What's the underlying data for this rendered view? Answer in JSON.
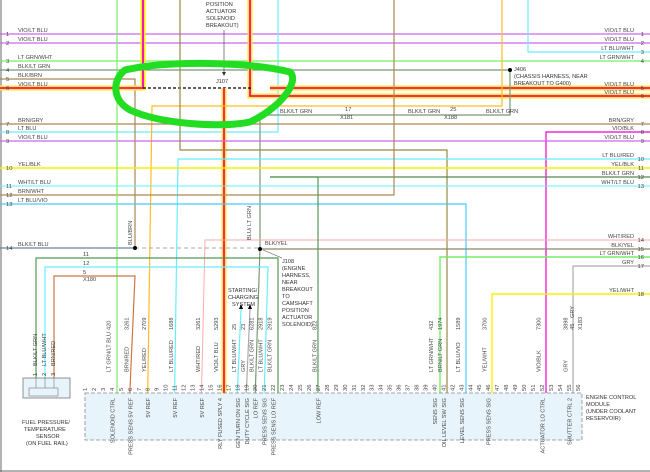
{
  "colors": {
    "violet": "#cc66ee",
    "yellow": "#ffee00",
    "magenta": "#ee00cc",
    "lt_green": "#77ee66",
    "blk_lt_grn": "#779977",
    "cyan": "#66eeff",
    "brown": "#aa8855",
    "orange": "#ffbb22",
    "highlight": "#22dd22",
    "module_fill": "#e8f4fc"
  },
  "top_note": [
    "POSITION",
    "ACTUATOR",
    "SOLENOID",
    "BREAKOUT)"
  ],
  "left_wires": [
    {
      "num": "1",
      "label": "VIO/LT BLU"
    },
    {
      "num": "2",
      "label": "VIO/LT BLU"
    },
    {
      "num": "3",
      "label": "LT GRN/WHT"
    },
    {
      "num": "4",
      "label": "BLK/LT GRN"
    },
    {
      "num": "5",
      "label": "BLK/BRN"
    },
    {
      "num": "6",
      "label": "VIO/LT BLU"
    },
    {
      "num": "7",
      "label": "BRN/GRY"
    },
    {
      "num": "8",
      "label": "LT BLU"
    },
    {
      "num": "9",
      "label": "VIO/LT BLU"
    },
    {
      "num": "10",
      "label": "YEL/BLK"
    },
    {
      "num": "11",
      "label": "WHT/LT BLU"
    },
    {
      "num": "12",
      "label": "BRN/WHT"
    },
    {
      "num": "13",
      "label": "LT BLU/VIO"
    },
    {
      "num": "14",
      "label": "BLK/LT BLU"
    }
  ],
  "right_wires": [
    {
      "num": "1",
      "label": "VIO/LT BLU"
    },
    {
      "num": "2",
      "label": "VIO/LT BLU"
    },
    {
      "num": "3",
      "label": "LT BLU/WHT"
    },
    {
      "num": "4",
      "label": "LT GRN/WHT"
    },
    {
      "num": "5",
      "label": "VIO/LT BLU"
    },
    {
      "num": "6",
      "label": "VIO/LT BLU"
    },
    {
      "num": "7",
      "label": "BRN/GRY"
    },
    {
      "num": "8",
      "label": "VIO/BLK"
    },
    {
      "num": "9",
      "label": "VIO/LT BLU"
    },
    {
      "num": "10",
      "label": "LT BLU/RED"
    },
    {
      "num": "11",
      "label": "YEL/BLK"
    },
    {
      "num": "12",
      "label": "BLK/LT GRN"
    },
    {
      "num": "13",
      "label": "WHT/LT BLU"
    },
    {
      "num": "14",
      "label": "WHT/RED"
    },
    {
      "num": "15",
      "label": "BLK/YEL"
    },
    {
      "num": "16",
      "label": "LT GRN/WHT"
    },
    {
      "num": "17",
      "label": "GRY"
    },
    {
      "num": "18",
      "label": "YEL/WHT"
    }
  ],
  "splices": {
    "j107": "J107",
    "j406": {
      "name": "J406",
      "desc": [
        "(CHASSIS HARNESS, NEAR",
        "BREAKOUT TO G400)"
      ]
    },
    "j108": {
      "name": "J108",
      "desc": [
        "(ENGINE",
        "HARNESS,",
        "NEAR",
        "BREAKOUT",
        "TO",
        "CAMSHAFT",
        "POSITION",
        "ACTUATOR",
        "SOLENOID)"
      ]
    }
  },
  "mid_labels": {
    "blk_lt_grn": "BLK/LT GRN",
    "blk_yel": "BLK/YEL",
    "blu_brn": "BLU/BRN",
    "blu_lt_grn": "BLU/ LT GRN",
    "x181_pin": "17",
    "x181": "X181",
    "x188_pin": "25",
    "x188": "X188",
    "x180": "X180",
    "x180_pins": [
      "11",
      "12",
      "5"
    ],
    "x183_pin": "45",
    "x183_wire": "GRY",
    "x183": "X183"
  },
  "starting_system": [
    "STARTING/",
    "CHARGING",
    "SYSTEM"
  ],
  "sensor": {
    "name": [
      "FUEL PRESSURE/",
      "TEMPERATURE",
      "SENSOR",
      "(ON FUEL RAIL)"
    ],
    "pins": [
      {
        "num": "1",
        "wire": "BLK/LT GRN"
      },
      {
        "num": "2",
        "wire": "LT BLU/WHT"
      },
      {
        "num": "3",
        "wire": "BRN/RED"
      }
    ]
  },
  "ecm": {
    "name": [
      "ENGINE CONTROL",
      "MODULE",
      "(UNDER COOLANT",
      "RESERVOIR)"
    ],
    "pin_numbers": [
      "1",
      "2",
      "3",
      "4",
      "5",
      "6",
      "7",
      "8",
      "9",
      "10",
      "11",
      "12",
      "13",
      "14",
      "15",
      "16",
      "17",
      "18",
      "19",
      "20",
      "21",
      "22",
      "23",
      "24",
      "25",
      "26",
      "27",
      "28",
      "29",
      "30",
      "31",
      "32",
      "33",
      "34",
      "35",
      "36",
      "37",
      "38",
      "39",
      "40",
      "41",
      "42",
      "43",
      "44",
      "45",
      "46",
      "47",
      "48",
      "49",
      "50",
      "51",
      "52",
      "53",
      "54",
      "55",
      "56"
    ],
    "pins": [
      {
        "pin": 4,
        "wire": "LT GRN/LT BLU",
        "circuit": "420",
        "func": "SOLENOID CTRL"
      },
      {
        "pin": 6,
        "wire": "BRN/RED",
        "circuit": "3261",
        "func": "PRESS SENS 5V REF"
      },
      {
        "pin": 8,
        "wire": "YEL/RED",
        "circuit": "2709",
        "func": "5V REF"
      },
      {
        "pin": 11,
        "wire": "LT BLU/RED",
        "circuit": "1688",
        "func": "5V REF"
      },
      {
        "pin": 14,
        "wire": "WHT/RED",
        "circuit": "3261",
        "func": "5V REF"
      },
      {
        "pin": 16,
        "wire": "VIO/LT BLU",
        "circuit": "5293",
        "func": "RLY FUSED SPLY 4"
      },
      {
        "pin": 18,
        "wire": "LT BLU/WHT",
        "circuit": "25",
        "func": "GEN TURN ON SIG"
      },
      {
        "pin": 19,
        "wire": "GRY",
        "circuit": "23",
        "func": "DUTY CYCLE SIG"
      },
      {
        "pin": 20,
        "wire": "BLK/LT GRN",
        "circuit": "6281",
        "func": "LO REF"
      },
      {
        "pin": 21,
        "wire": "LT BLU/WHT",
        "circuit": "2918",
        "func": "PRESS SENS SIG"
      },
      {
        "pin": 22,
        "wire": "BLK/LT GRN",
        "circuit": "2919",
        "func": "PRESS SENS LO REF"
      },
      {
        "pin": 27,
        "wire": "BLK/LT GRN",
        "circuit": "822",
        "func": "LOW REF"
      },
      {
        "pin": 40,
        "wire": "LT GRN/WHT",
        "circuit": "432",
        "func": "SENS SIG"
      },
      {
        "pin": 41,
        "wire": "BRN/LT GRN",
        "circuit": "1974",
        "func": "OIL LEVEL SW SIG"
      },
      {
        "pin": 43,
        "wire": "LT BLU/VIO",
        "circuit": "1589",
        "func": "LEVEL SENS SIG"
      },
      {
        "pin": 46,
        "wire": "YEL/WHT",
        "circuit": "3700",
        "func": "PRESS SENS SIG"
      },
      {
        "pin": 52,
        "wire": "VIO/BLK",
        "circuit": "7300",
        "func": "ACTUATOR LO CTRL"
      },
      {
        "pin": 55,
        "wire": "GRY",
        "circuit": "3898",
        "func": "SHUTTER CTRL 2"
      }
    ]
  }
}
